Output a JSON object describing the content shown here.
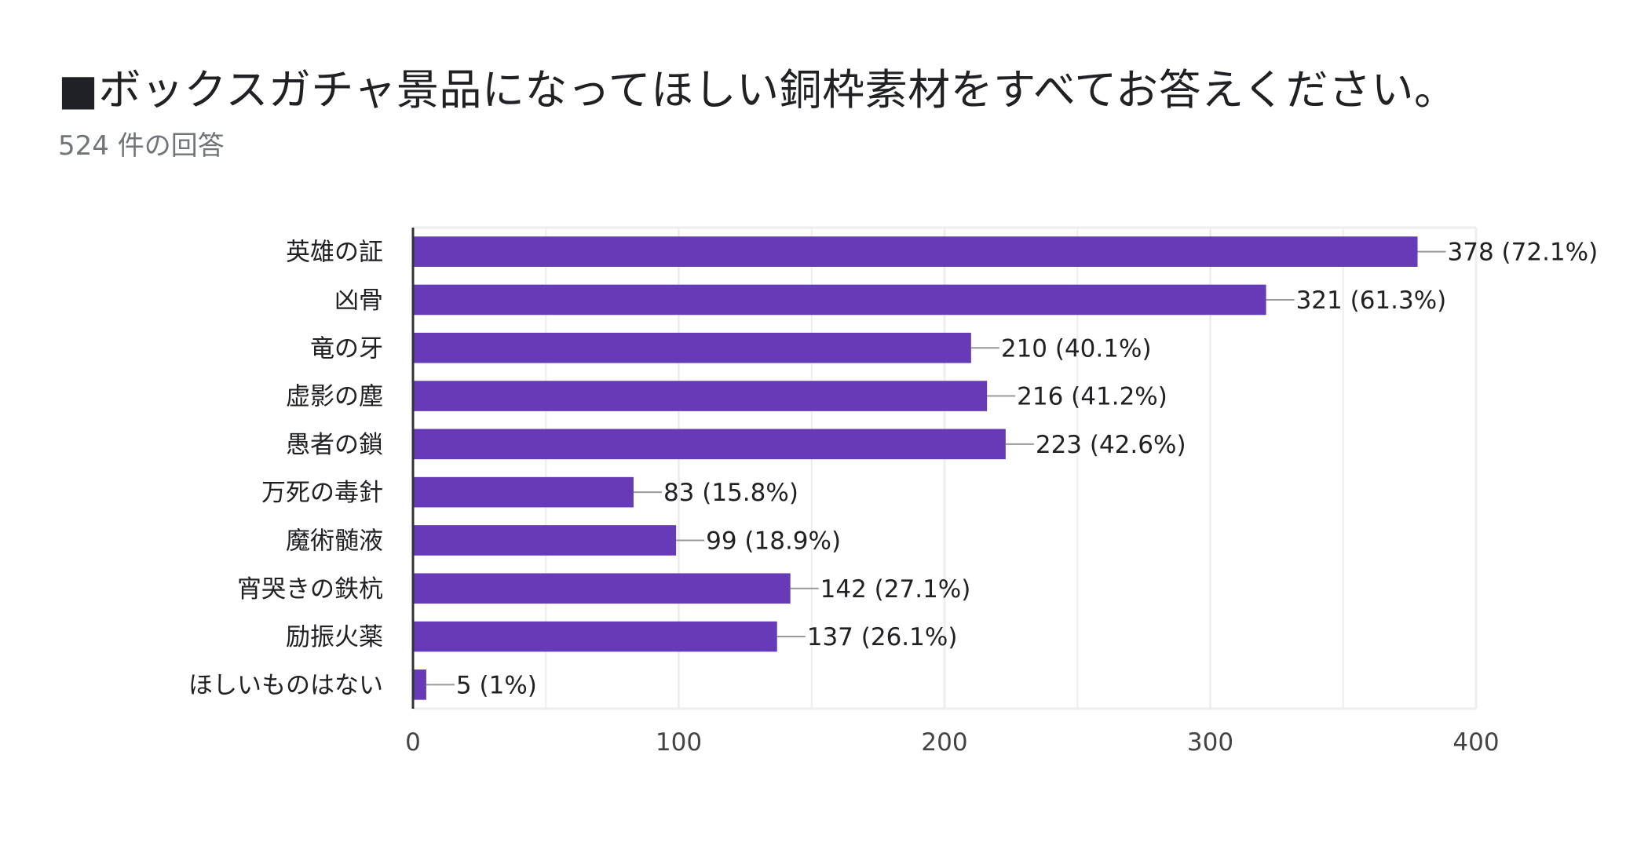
{
  "header": {
    "title": "■ボックスガチャ景品になってほしい銅枠素材をすべてお答えください。",
    "subtitle": "524 件の回答"
  },
  "colors": {
    "bar": "#673ab7",
    "grid": "#eeeeee",
    "axis": "#333333",
    "leader": "#999999"
  },
  "chart_data": {
    "type": "bar",
    "orientation": "horizontal",
    "categories": [
      "英雄の証",
      "凶骨",
      "竜の牙",
      "虚影の塵",
      "愚者の鎖",
      "万死の毒針",
      "魔術髄液",
      "宵哭きの鉄杭",
      "励振火薬",
      "ほしいものはない"
    ],
    "values": [
      378,
      321,
      210,
      216,
      223,
      83,
      99,
      142,
      137,
      5
    ],
    "data_labels": [
      "378 (72.1%)",
      "321 (61.3%)",
      "210 (40.1%)",
      "216 (41.2%)",
      "223 (42.6%)",
      "83 (15.8%)",
      "99 (18.9%)",
      "142 (27.1%)",
      "137 (26.1%)",
      "5 (1%)"
    ],
    "xlim": [
      0,
      400
    ],
    "xticks": [
      0,
      100,
      200,
      300,
      400
    ],
    "minor_grid": [
      50,
      150,
      250,
      350
    ],
    "grid": true,
    "legend": "none"
  }
}
